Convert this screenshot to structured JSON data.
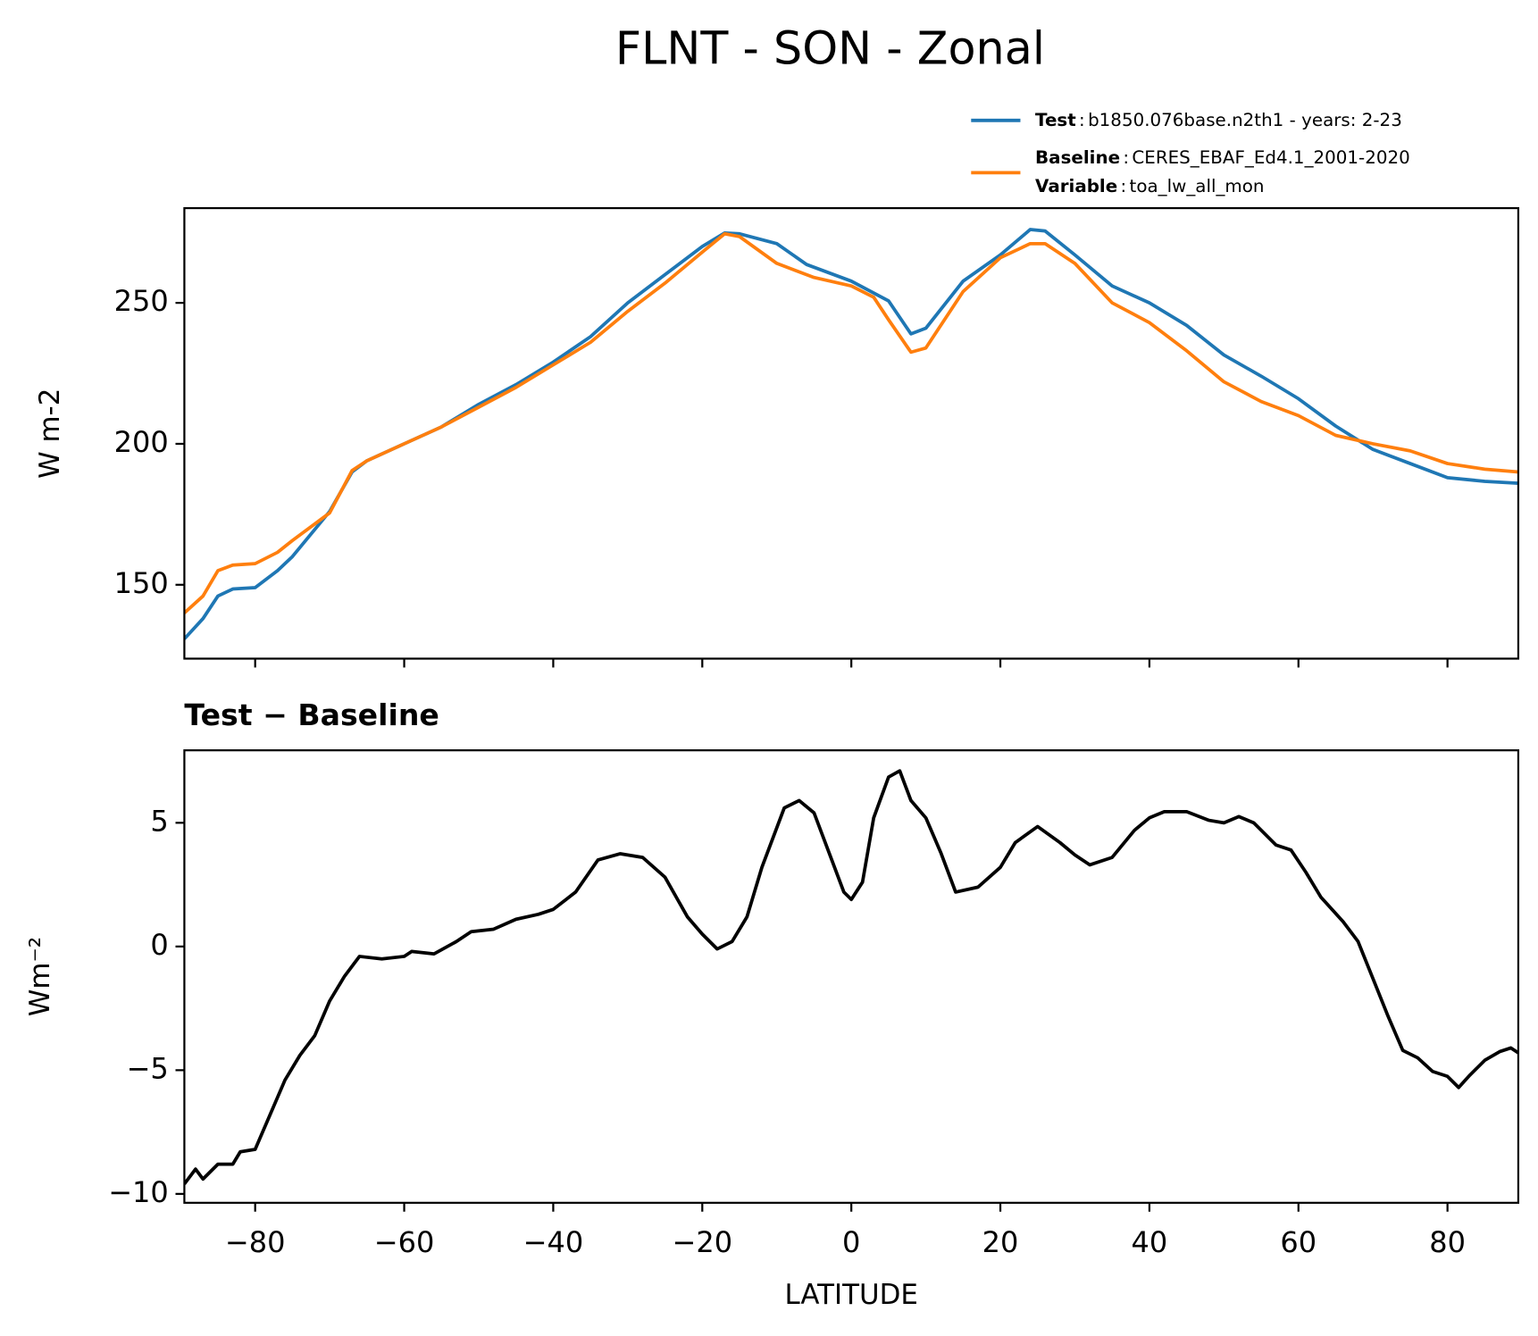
{
  "chart_data": [
    {
      "type": "line",
      "title": "FLNT - SON - Zonal",
      "ylabel": "W m-2",
      "legend_separator": ":",
      "series": [
        {
          "name": "Test",
          "label": "b1850.076base.n2th1 - years: 2-23",
          "color": "#1f77b4",
          "x": [
            -89.5,
            -87,
            -85,
            -83,
            -80,
            -77,
            -75,
            -70,
            -67,
            -65,
            -60,
            -55,
            -50,
            -45,
            -40,
            -35,
            -30,
            -25,
            -20,
            -17,
            -15,
            -10,
            -6,
            0,
            5,
            8,
            10,
            15,
            20,
            24,
            26,
            30,
            35,
            40,
            45,
            50,
            55,
            60,
            65,
            70,
            75,
            80,
            85,
            89.5
          ],
          "values": [
            130.8,
            138,
            146,
            148.5,
            149,
            155,
            160,
            176,
            190,
            194,
            200,
            206,
            214,
            221,
            229,
            238,
            250,
            260,
            270,
            274.8,
            274.5,
            271,
            263.6,
            257.7,
            250.7,
            239,
            241,
            257.7,
            267,
            276,
            275.5,
            267,
            256,
            250,
            242,
            231.5,
            224,
            216,
            206.3,
            198,
            193,
            188,
            186.7,
            186
          ]
        },
        {
          "name": "Baseline",
          "label": "CERES_EBAF_Ed4.1_2001-2020",
          "color": "#ff7f0e",
          "x": [
            -89.5,
            -87,
            -85,
            -83,
            -80,
            -77,
            -75,
            -70,
            -67,
            -65,
            -60,
            -55,
            -50,
            -45,
            -40,
            -35,
            -30,
            -25,
            -20,
            -17,
            -15,
            -10,
            -5,
            0,
            3,
            5,
            8,
            10,
            15,
            20,
            24,
            26,
            30,
            35,
            40,
            45,
            50,
            55,
            60,
            65,
            70,
            75,
            80,
            85,
            89.5
          ],
          "values": [
            140,
            146,
            155,
            157,
            157.5,
            161.5,
            165.7,
            175.5,
            190.5,
            194,
            200,
            206,
            213,
            220,
            228,
            236,
            247,
            257,
            268,
            274.5,
            273.5,
            264,
            259,
            256,
            252,
            244,
            232.5,
            234,
            254,
            266,
            271,
            271,
            264,
            250,
            243,
            233,
            222,
            215,
            210,
            203,
            200,
            197.5,
            193,
            191,
            190
          ]
        }
      ],
      "variable": {
        "name": "Variable",
        "label": "toa_lw_all_mon"
      },
      "xlim": [
        -89.5,
        89.5
      ],
      "xticks": [
        -80,
        -60,
        -40,
        -20,
        0,
        20,
        40,
        60,
        80
      ],
      "ylim": [
        123.8,
        283.6
      ],
      "yticks": [
        150,
        200,
        250
      ]
    },
    {
      "type": "line",
      "title": "Test − Baseline",
      "ylabel": "Wm⁻²",
      "xlabel": "LATITUDE",
      "series": [
        {
          "color": "#000000",
          "x": [
            -89.5,
            -88,
            -87,
            -85,
            -83,
            -82,
            -80,
            -78,
            -76,
            -74,
            -72,
            -70,
            -68,
            -66,
            -63,
            -60,
            -59,
            -56,
            -53,
            -51,
            -48,
            -45,
            -42,
            -40,
            -37,
            -34,
            -31,
            -28,
            -25,
            -22,
            -20,
            -18,
            -16,
            -14,
            -12,
            -9,
            -7,
            -5,
            -3,
            -1,
            0,
            1.5,
            3,
            5,
            6.5,
            8,
            10,
            12,
            14,
            17,
            20,
            22,
            25,
            28,
            30,
            32,
            35,
            38,
            40,
            42,
            45,
            48,
            50,
            52,
            54,
            57,
            59,
            61,
            63,
            66,
            68,
            70,
            72,
            74,
            76,
            78,
            80,
            81.5,
            83,
            85,
            87,
            88.5,
            89.5
          ],
          "values": [
            -9.6,
            -9,
            -9.4,
            -8.8,
            -8.8,
            -8.3,
            -8.2,
            -6.8,
            -5.4,
            -4.4,
            -3.6,
            -2.2,
            -1.2,
            -0.4,
            -0.5,
            -0.4,
            -0.2,
            -0.3,
            0.2,
            0.6,
            0.7,
            1.1,
            1.3,
            1.5,
            2.2,
            3.5,
            3.75,
            3.6,
            2.8,
            1.2,
            0.5,
            -0.1,
            0.2,
            1.2,
            3.2,
            5.6,
            5.9,
            5.4,
            3.8,
            2.2,
            1.9,
            2.6,
            5.2,
            6.85,
            7.1,
            5.9,
            5.2,
            3.8,
            2.2,
            2.4,
            3.2,
            4.2,
            4.85,
            4.2,
            3.7,
            3.3,
            3.6,
            4.7,
            5.2,
            5.45,
            5.45,
            5.1,
            5.0,
            5.25,
            5.0,
            4.1,
            3.9,
            3.0,
            2.0,
            1.0,
            0.2,
            -1.3,
            -2.8,
            -4.2,
            -4.5,
            -5.05,
            -5.25,
            -5.7,
            -5.2,
            -4.6,
            -4.25,
            -4.1,
            -4.3
          ]
        }
      ],
      "xlim": [
        -89.5,
        89.5
      ],
      "xticks": [
        {
          "value": -80,
          "label": "−80"
        },
        {
          "value": -60,
          "label": "−60"
        },
        {
          "value": -40,
          "label": "−40"
        },
        {
          "value": -20,
          "label": "−20"
        },
        0,
        20,
        40,
        60,
        80
      ],
      "ylim": [
        -10.36,
        7.93
      ],
      "yticks": [
        {
          "value": -10,
          "label": "−10"
        },
        {
          "value": -5,
          "label": "−5"
        },
        0,
        5
      ]
    }
  ]
}
